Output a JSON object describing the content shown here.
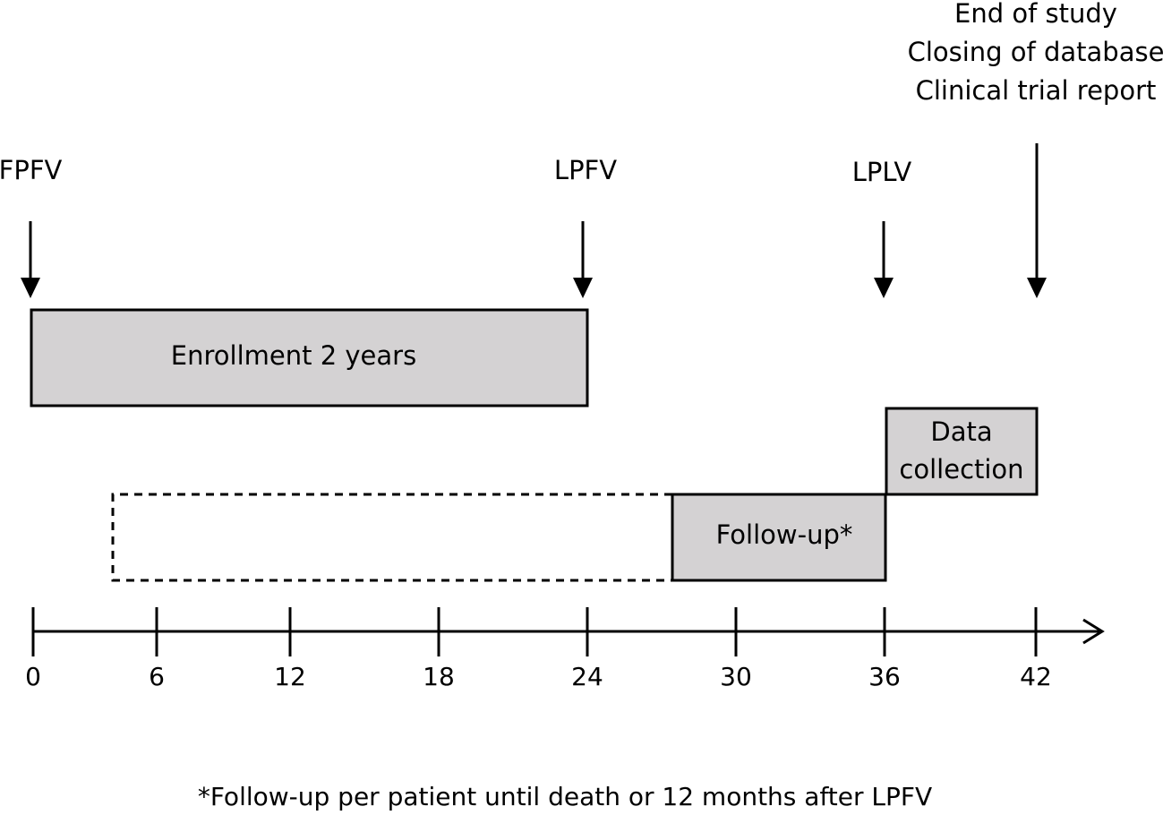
{
  "milestones": {
    "fpfv": "FPFV",
    "lpfv": "LPFV",
    "lplv": "LPLV",
    "end_lines": [
      "End of study",
      "Closing of database",
      "Clinical trial report"
    ]
  },
  "boxes": {
    "enrollment": "Enrollment 2 years",
    "data_collection": [
      "Data",
      "collection"
    ],
    "follow_up": "Follow-up*"
  },
  "axis": {
    "ticks": [
      "0",
      "6",
      "12",
      "18",
      "24",
      "30",
      "36",
      "42"
    ]
  },
  "footnote": "*Follow-up per patient until death or 12 months after LPFV",
  "colors": {
    "box_fill": "#d4d2d3",
    "stroke": "#000000"
  }
}
